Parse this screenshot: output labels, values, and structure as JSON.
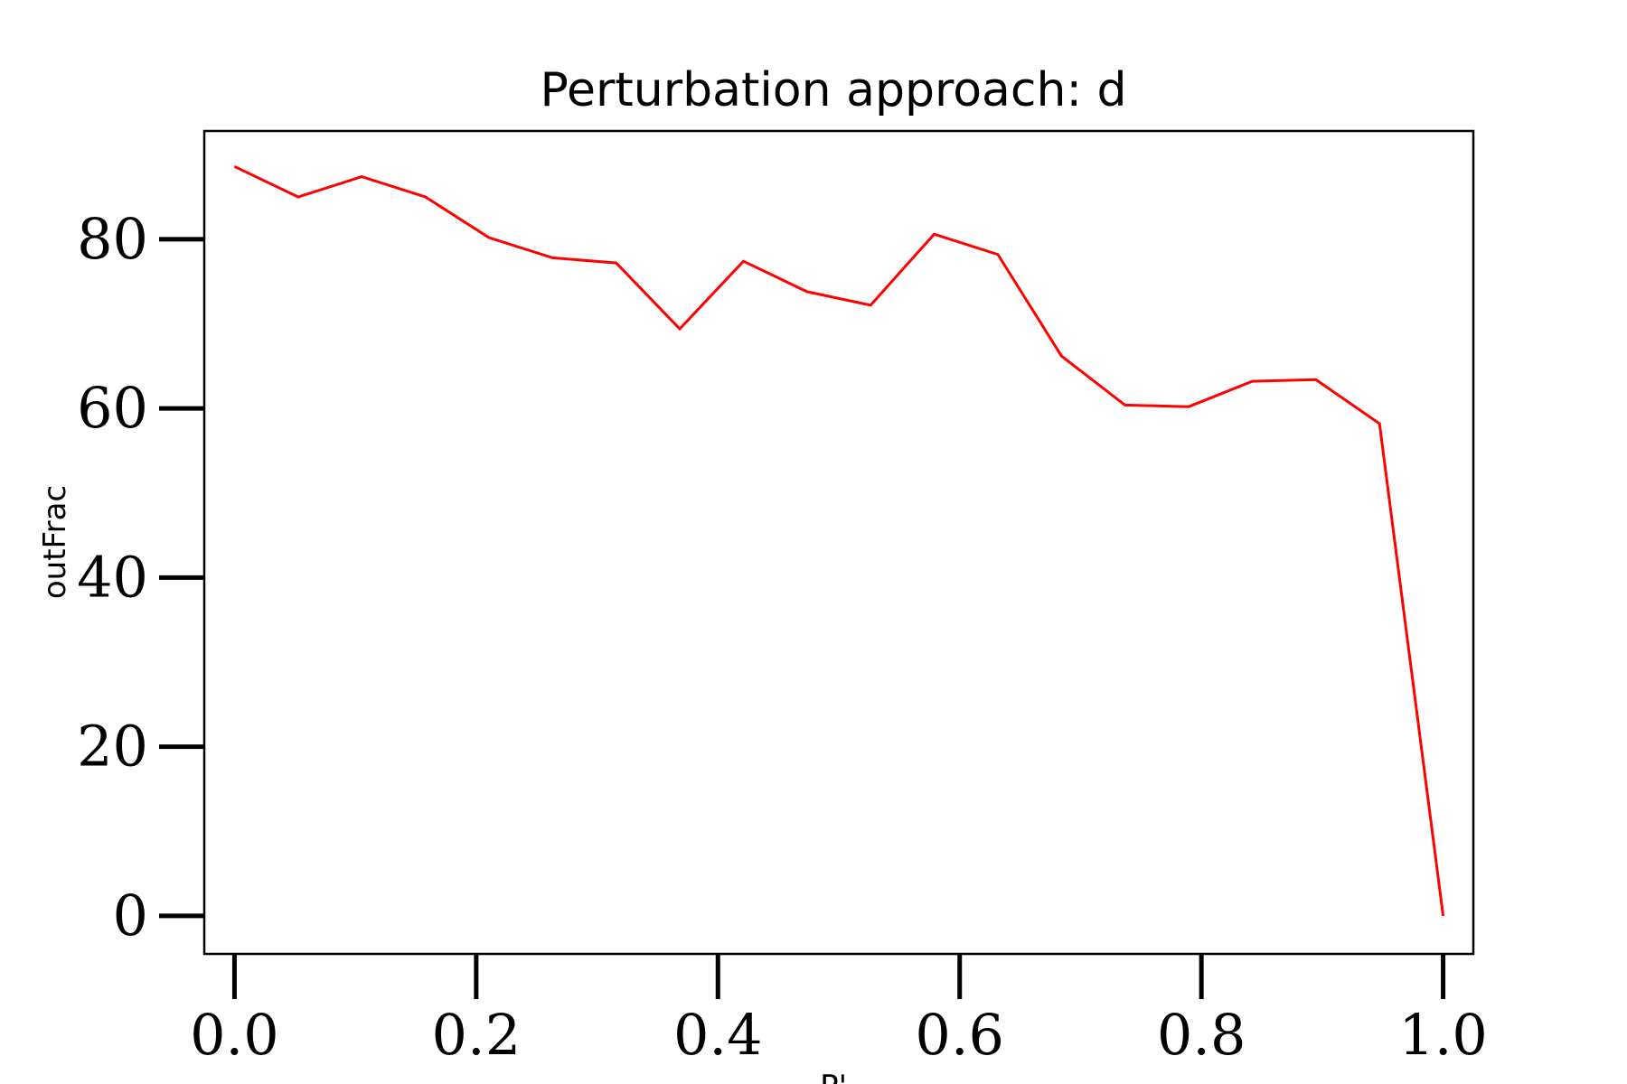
{
  "chart_data": {
    "type": "line",
    "title": "Perturbation approach: d",
    "xlabel": "P'",
    "ylabel": "outFrac",
    "xlim": [
      -0.025,
      1.025
    ],
    "ylim": [
      -4.5,
      92.8
    ],
    "xticks": [
      0.0,
      0.2,
      0.4,
      0.6,
      0.8,
      1.0
    ],
    "xtick_labels": [
      "0.0",
      "0.2",
      "0.4",
      "0.6",
      "0.8",
      "1.0"
    ],
    "yticks": [
      0,
      20,
      40,
      60,
      80
    ],
    "ytick_labels": [
      "0",
      "20",
      "40",
      "60",
      "80"
    ],
    "grid": false,
    "series": [
      {
        "color": "#ff0000",
        "x": [
          0.0,
          0.0526,
          0.1053,
          0.1579,
          0.2105,
          0.2632,
          0.3158,
          0.3684,
          0.4211,
          0.4737,
          0.5263,
          0.5789,
          0.6316,
          0.6842,
          0.7368,
          0.7895,
          0.8421,
          0.8947,
          0.9474,
          1.0
        ],
        "y": [
          88.6,
          85.0,
          87.4,
          85.0,
          80.2,
          77.8,
          77.2,
          69.4,
          77.4,
          73.8,
          72.2,
          80.6,
          78.2,
          66.2,
          60.4,
          60.2,
          63.2,
          63.4,
          58.2,
          0.0
        ]
      }
    ]
  }
}
